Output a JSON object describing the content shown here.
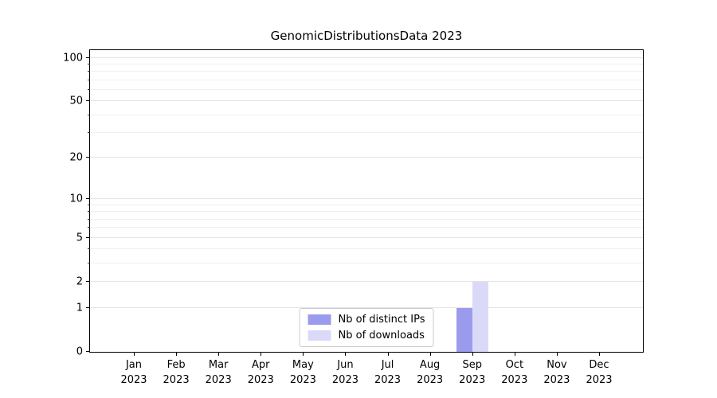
{
  "chart_data": {
    "type": "bar",
    "title": "GenomicDistributionsData 2023",
    "xlabel": "",
    "ylabel": "",
    "categories": [
      "Jan",
      "Feb",
      "Mar",
      "Apr",
      "May",
      "Jun",
      "Jul",
      "Aug",
      "Sep",
      "Oct",
      "Nov",
      "Dec"
    ],
    "category_year": "2023",
    "series": [
      {
        "name": "Nb of distinct IPs",
        "color": "#9b9bee",
        "values": [
          0,
          0,
          0,
          0,
          0,
          0,
          0,
          0,
          1,
          0,
          0,
          0
        ]
      },
      {
        "name": "Nb of downloads",
        "color": "#dadaf8",
        "values": [
          0,
          0,
          0,
          0,
          0,
          0,
          0,
          0,
          2,
          0,
          0,
          0
        ]
      }
    ],
    "yscale": "log1p",
    "ylim": [
      0,
      113
    ],
    "yticks": [
      0,
      1,
      2,
      5,
      10,
      20,
      50,
      100
    ],
    "y_minor_gridlines": [
      3,
      4,
      6,
      7,
      8,
      9,
      30,
      40,
      60,
      70,
      80,
      90
    ],
    "grid": "horizontal",
    "legend_position": "lower center"
  }
}
